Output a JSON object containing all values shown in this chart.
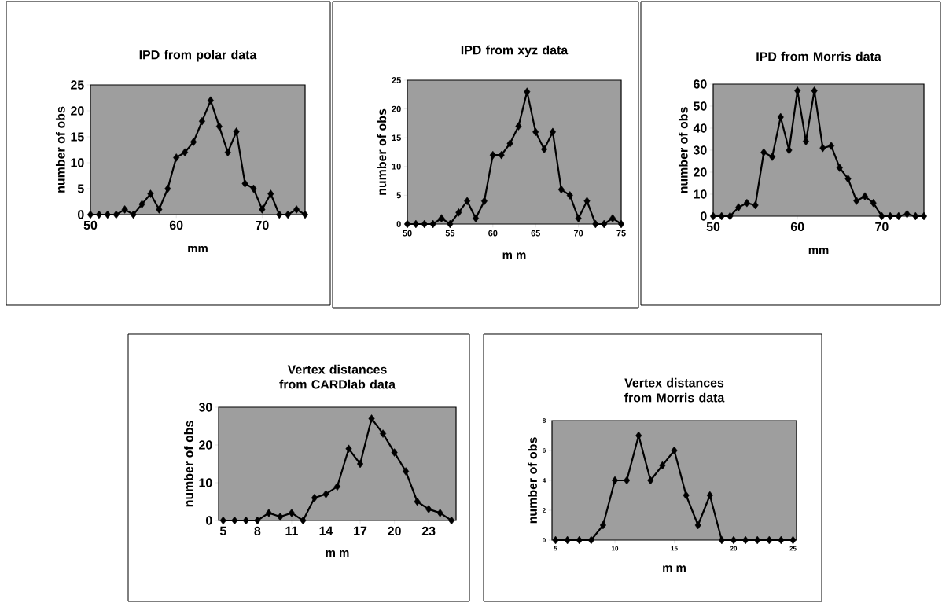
{
  "chart_data": [
    {
      "type": "line",
      "title": "IPD from polar data",
      "xlabel": "mm",
      "ylabel": "number of obs",
      "color": "#000000",
      "marker": "diamond",
      "xlim": [
        50,
        75
      ],
      "ylim": [
        0,
        25
      ],
      "xticks": [
        50,
        60,
        70
      ],
      "yticks": [
        0,
        5,
        10,
        15,
        20,
        25
      ],
      "x": [
        50,
        51,
        52,
        53,
        54,
        55,
        56,
        57,
        58,
        59,
        60,
        61,
        62,
        63,
        64,
        65,
        66,
        67,
        68,
        69,
        70,
        71,
        72,
        73,
        74,
        75
      ],
      "values": [
        0,
        0,
        0,
        0,
        1,
        0,
        2,
        4,
        1,
        5,
        11,
        12,
        14,
        18,
        22,
        17,
        12,
        16,
        6,
        5,
        1,
        4,
        0,
        0,
        1,
        0
      ]
    },
    {
      "type": "line",
      "title": "IPD from xyz data",
      "xlabel": "m m",
      "ylabel": "number of obs",
      "color": "#000000",
      "marker": "diamond",
      "xlim": [
        50,
        75
      ],
      "ylim": [
        0,
        25
      ],
      "xticks": [
        50,
        55,
        60,
        65,
        70,
        75
      ],
      "yticks": [
        0,
        5,
        10,
        15,
        20,
        25
      ],
      "x": [
        50,
        51,
        52,
        53,
        54,
        55,
        56,
        57,
        58,
        59,
        60,
        61,
        62,
        63,
        64,
        65,
        66,
        67,
        68,
        69,
        70,
        71,
        72,
        73,
        74,
        75
      ],
      "values": [
        0,
        0,
        0,
        0,
        1,
        0,
        2,
        4,
        1,
        4,
        12,
        12,
        14,
        17,
        23,
        16,
        13,
        16,
        6,
        5,
        1,
        4,
        0,
        0,
        1,
        0
      ]
    },
    {
      "type": "line",
      "title": "IPD from Morris data",
      "xlabel": "mm",
      "ylabel": "number of obs",
      "color": "#000000",
      "marker": "diamond",
      "xlim": [
        50,
        75
      ],
      "ylim": [
        0,
        60
      ],
      "xticks": [
        50,
        60,
        70
      ],
      "yticks": [
        0,
        10,
        20,
        30,
        40,
        50,
        60
      ],
      "x": [
        50,
        51,
        52,
        53,
        54,
        55,
        56,
        57,
        58,
        59,
        60,
        61,
        62,
        63,
        64,
        65,
        66,
        67,
        68,
        69,
        70,
        71,
        72,
        73,
        74,
        75
      ],
      "values": [
        0,
        0,
        0,
        4,
        6,
        5,
        29,
        27,
        45,
        30,
        57,
        34,
        57,
        31,
        32,
        22,
        17,
        7,
        9,
        6,
        0,
        0,
        0,
        1,
        0,
        0
      ]
    },
    {
      "type": "line",
      "title": "Vertex distances from CARDlab data",
      "xlabel": "m m",
      "ylabel": "number of obs",
      "color": "#000000",
      "marker": "diamond",
      "xlim": [
        4.6,
        25.4
      ],
      "ylim": [
        0,
        30
      ],
      "xticks": [
        5,
        8,
        11,
        14,
        17,
        20,
        23
      ],
      "yticks": [
        0,
        10,
        20,
        30
      ],
      "x": [
        5,
        6,
        7,
        8,
        9,
        10,
        11,
        12,
        13,
        14,
        15,
        16,
        17,
        18,
        19,
        20,
        21,
        22,
        23,
        24,
        25
      ],
      "values": [
        0,
        0,
        0,
        0,
        2,
        1,
        2,
        0,
        6,
        7,
        9,
        19,
        15,
        27,
        23,
        18,
        13,
        5,
        3,
        2,
        0
      ]
    },
    {
      "type": "line",
      "title": "Vertex distances from Morris data",
      "xlabel": "m m",
      "ylabel": "number of obs",
      "color": "#000000",
      "marker": "diamond",
      "xlim": [
        4.7,
        25.3
      ],
      "ylim": [
        0,
        8
      ],
      "xticks": [
        5,
        10,
        15,
        20,
        25
      ],
      "yticks": [
        0,
        2,
        4,
        6,
        8
      ],
      "x": [
        5,
        6,
        7,
        8,
        9,
        10,
        11,
        12,
        13,
        14,
        15,
        16,
        17,
        18,
        19,
        20,
        21,
        22,
        23,
        24,
        25
      ],
      "values": [
        0,
        0,
        0,
        0,
        1,
        4,
        4,
        7,
        4,
        5,
        6,
        3,
        1,
        3,
        0,
        0,
        0,
        0,
        0,
        0,
        0
      ]
    }
  ]
}
